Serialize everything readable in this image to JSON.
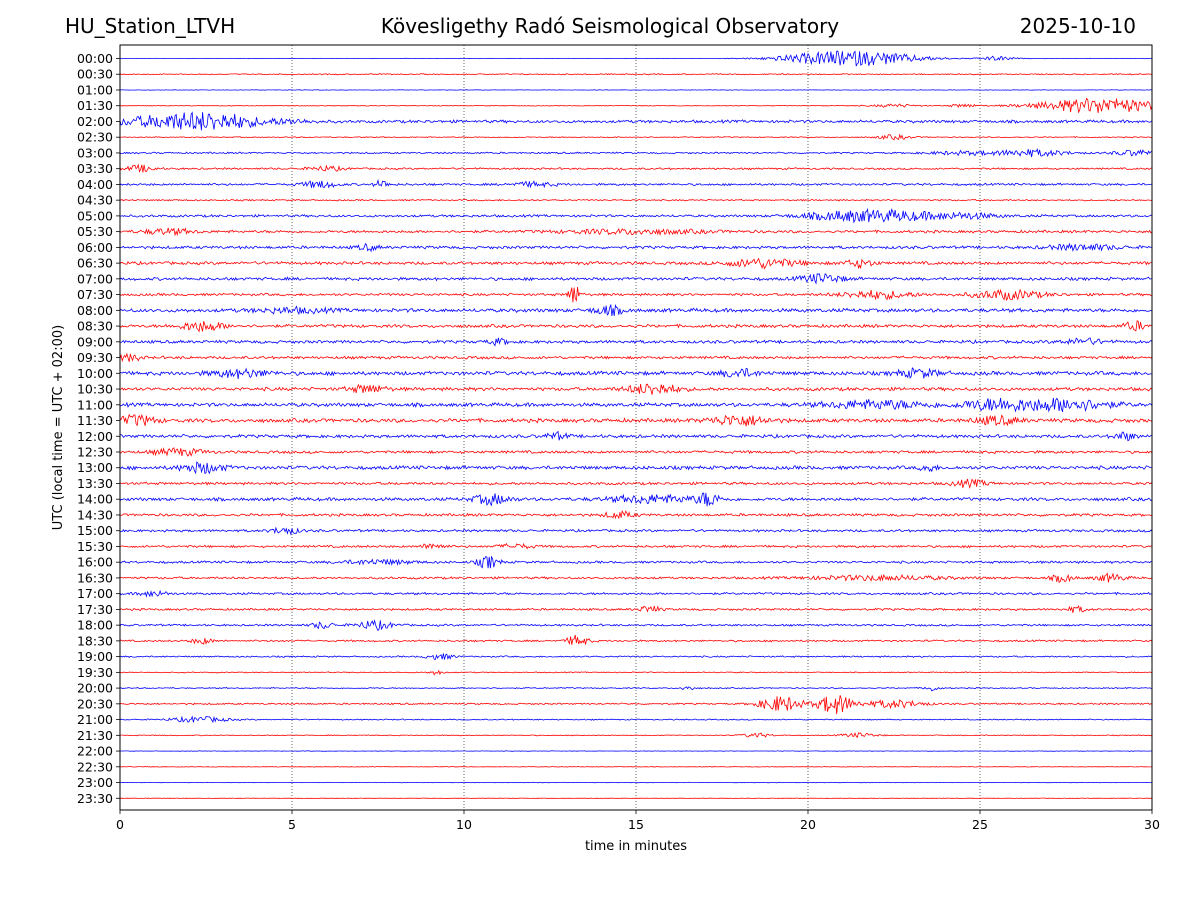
{
  "header": {
    "station": "HU_Station_LTVH",
    "observatory": "Kövesligethy Radó Seismological Observatory",
    "date": "2025-10-10"
  },
  "chart_data": {
    "type": "line",
    "title": "Kövesligethy Radó Seismological Observatory",
    "xlabel": "time in minutes",
    "ylabel": "UTC (local time = UTC + 02:00)",
    "xlim": [
      0,
      30
    ],
    "x_ticks": [
      0,
      5,
      10,
      15,
      20,
      25,
      30
    ],
    "grid": "vertical dotted lines at each x tick",
    "colors": [
      "#0000ff",
      "#ff0000"
    ],
    "rows": [
      "00:00",
      "00:30",
      "01:00",
      "01:30",
      "02:00",
      "02:30",
      "03:00",
      "03:30",
      "04:00",
      "04:30",
      "05:00",
      "05:30",
      "06:00",
      "06:30",
      "07:00",
      "07:30",
      "08:00",
      "08:30",
      "09:00",
      "09:30",
      "10:00",
      "10:30",
      "11:00",
      "11:30",
      "12:00",
      "12:30",
      "13:00",
      "13:30",
      "14:00",
      "14:30",
      "15:00",
      "15:30",
      "16:00",
      "16:30",
      "17:00",
      "17:30",
      "18:00",
      "18:30",
      "19:00",
      "19:30",
      "20:00",
      "20:30",
      "21:00",
      "21:30",
      "22:00",
      "22:30",
      "23:00",
      "23:30"
    ],
    "base_noise": [
      0.3,
      1.0,
      0.4,
      0.6,
      2.5,
      0.9,
      1.4,
      1.6,
      1.9,
      1.3,
      2.1,
      2.3,
      2.5,
      2.6,
      2.6,
      2.2,
      3.2,
      2.7,
      2.6,
      2.4,
      3.3,
      2.9,
      3.2,
      3.3,
      2.8,
      2.4,
      3.1,
      2.3,
      2.8,
      2.3,
      2.1,
      2.0,
      2.0,
      1.9,
      1.9,
      1.8,
      1.7,
      1.6,
      1.3,
      0.9,
      1.0,
      1.4,
      1.0,
      0.8,
      0.4,
      0.5,
      0.4,
      0.4
    ],
    "events": [
      [
        [
          20.5,
          1.5,
          9
        ],
        [
          22,
          1.5,
          9
        ],
        [
          25.5,
          0.5,
          4
        ]
      ],
      [],
      [],
      [
        [
          28.5,
          1.8,
          14
        ],
        [
          22.5,
          0.6,
          3
        ],
        [
          24.5,
          0.4,
          3
        ]
      ],
      [
        [
          1.8,
          1.8,
          12
        ],
        [
          3,
          1.2,
          7
        ],
        [
          5,
          0.6,
          3
        ]
      ],
      [
        [
          22.5,
          0.5,
          4
        ]
      ],
      [
        [
          26.5,
          1,
          6
        ],
        [
          29.5,
          0.6,
          5
        ],
        [
          24.5,
          1,
          3
        ]
      ],
      [
        [
          0.6,
          0.4,
          6
        ],
        [
          6,
          0.5,
          4
        ]
      ],
      [
        [
          5.8,
          0.5,
          6
        ],
        [
          7.6,
          0.2,
          7
        ],
        [
          12,
          0.6,
          4
        ]
      ],
      [],
      [
        [
          21,
          1.2,
          7
        ],
        [
          22.5,
          1.2,
          8
        ],
        [
          24.5,
          1,
          5
        ]
      ],
      [
        [
          1.4,
          0.7,
          5
        ],
        [
          15,
          2,
          4
        ]
      ],
      [
        [
          7.2,
          0.3,
          5
        ],
        [
          28,
          1,
          5
        ]
      ],
      [
        [
          18.7,
          1,
          8
        ],
        [
          21.5,
          0.4,
          7
        ]
      ],
      [
        [
          20.4,
          0.6,
          8
        ]
      ],
      [
        [
          13.2,
          0.15,
          20
        ],
        [
          22,
          1,
          7
        ],
        [
          25.8,
          1,
          8
        ]
      ],
      [
        [
          14.2,
          0.4,
          8
        ],
        [
          5,
          1,
          4
        ]
      ],
      [
        [
          2.4,
          0.6,
          9
        ],
        [
          29.5,
          0.3,
          8
        ]
      ],
      [
        [
          11,
          0.3,
          5
        ],
        [
          28,
          0.6,
          5
        ]
      ],
      [
        [
          0.3,
          0.3,
          6
        ]
      ],
      [
        [
          3.5,
          0.8,
          7
        ],
        [
          18,
          0.5,
          7
        ],
        [
          23.2,
          0.6,
          7
        ]
      ],
      [
        [
          15.5,
          0.7,
          10
        ],
        [
          7.2,
          0.5,
          7
        ]
      ],
      [
        [
          22,
          1.5,
          7
        ],
        [
          25.5,
          1,
          10
        ],
        [
          27.5,
          1.2,
          11
        ]
      ],
      [
        [
          0.5,
          0.5,
          9
        ],
        [
          18,
          0.8,
          9
        ],
        [
          25.5,
          0.6,
          7
        ]
      ],
      [
        [
          12.7,
          0.3,
          6
        ],
        [
          29.2,
          0.3,
          7
        ]
      ],
      [
        [
          1.7,
          0.7,
          6
        ]
      ],
      [
        [
          2.4,
          0.6,
          9
        ],
        [
          23.5,
          0.2,
          7
        ]
      ],
      [
        [
          24.7,
          0.5,
          6
        ]
      ],
      [
        [
          10.8,
          0.5,
          9
        ],
        [
          15.5,
          1.2,
          7
        ],
        [
          17.1,
          0.3,
          12
        ]
      ],
      [
        [
          14.5,
          0.4,
          6
        ]
      ],
      [
        [
          4.8,
          0.4,
          6
        ]
      ],
      [
        [
          9.1,
          0.3,
          6
        ],
        [
          11.5,
          0.5,
          4
        ]
      ],
      [
        [
          10.7,
          0.3,
          11
        ],
        [
          7.5,
          1,
          4
        ]
      ],
      [
        [
          27.4,
          0.3,
          7
        ],
        [
          28.8,
          0.4,
          7
        ],
        [
          22,
          2,
          4
        ]
      ],
      [
        [
          1,
          0.4,
          5
        ]
      ],
      [
        [
          15.4,
          0.3,
          6
        ],
        [
          27.8,
          0.3,
          5
        ]
      ],
      [
        [
          7.4,
          0.5,
          8
        ],
        [
          5.9,
          0.3,
          6
        ]
      ],
      [
        [
          13.3,
          0.3,
          10
        ],
        [
          2.4,
          0.3,
          5
        ]
      ],
      [
        [
          9.3,
          0.4,
          5
        ]
      ],
      [
        [
          9.2,
          0.2,
          4
        ]
      ],
      [
        [
          23.6,
          0.2,
          5
        ],
        [
          16.5,
          0.2,
          4
        ]
      ],
      [
        [
          19.2,
          0.6,
          14
        ],
        [
          20.8,
          0.5,
          18
        ],
        [
          22.5,
          0.8,
          7
        ]
      ],
      [
        [
          2.3,
          0.8,
          5
        ]
      ],
      [
        [
          18.5,
          0.4,
          4
        ],
        [
          21.5,
          0.5,
          4
        ]
      ],
      [],
      [],
      [],
      []
    ]
  }
}
